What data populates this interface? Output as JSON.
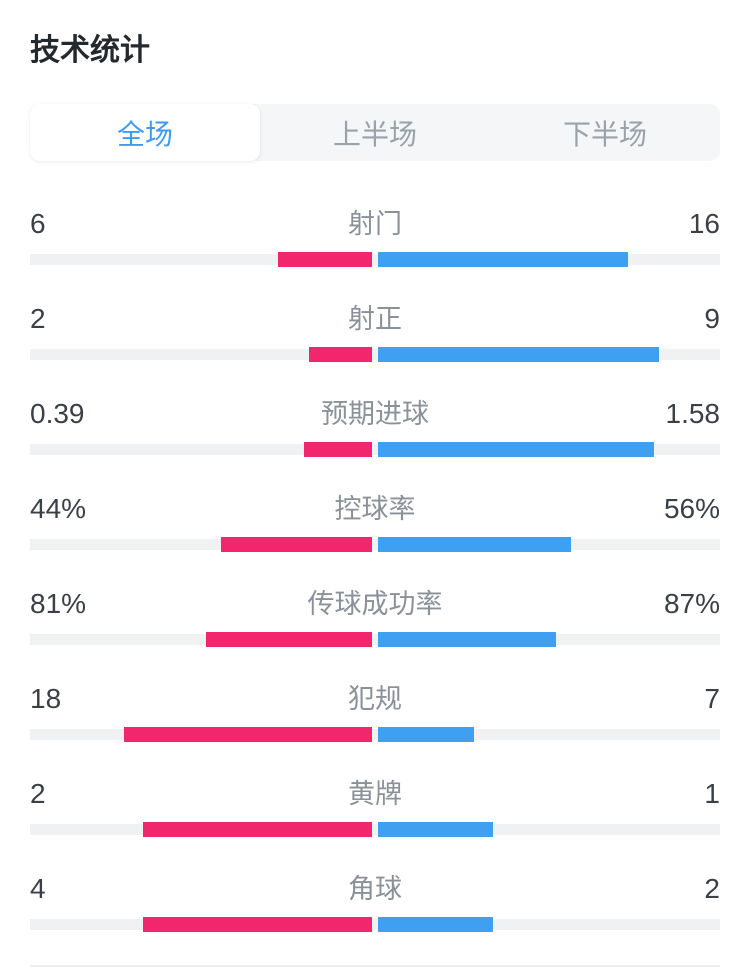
{
  "title": "技术统计",
  "tabs": [
    {
      "label": "全场",
      "active": true
    },
    {
      "label": "上半场",
      "active": false
    },
    {
      "label": "下半场",
      "active": false
    }
  ],
  "colors": {
    "home_bar": "#f2266d",
    "away_bar": "#3f9ff1",
    "track": "#f0f1f3",
    "tab_active_text": "#3e9cf0",
    "tab_inactive_text": "#9aa2ac",
    "tabbar_bg": "#f4f6f8",
    "value_text": "#3b4046",
    "label_text": "#8a9199",
    "title_text": "#24292e",
    "divider": "#efefef",
    "page_bg": "#ffffff"
  },
  "stats": {
    "rows": [
      {
        "key": "shots",
        "label": "射门",
        "home": "6",
        "away": "16",
        "home_value": 6,
        "away_value": 16
      },
      {
        "key": "shots-on-target",
        "label": "射正",
        "home": "2",
        "away": "9",
        "home_value": 2,
        "away_value": 9
      },
      {
        "key": "expected-goals",
        "label": "预期进球",
        "home": "0.39",
        "away": "1.58",
        "home_value": 0.39,
        "away_value": 1.58
      },
      {
        "key": "possession",
        "label": "控球率",
        "home": "44%",
        "away": "56%",
        "home_value": 44,
        "away_value": 56
      },
      {
        "key": "pass-success",
        "label": "传球成功率",
        "home": "81%",
        "away": "87%",
        "home_value": 81,
        "away_value": 87
      },
      {
        "key": "fouls",
        "label": "犯规",
        "home": "18",
        "away": "7",
        "home_value": 18,
        "away_value": 7
      },
      {
        "key": "yellow-cards",
        "label": "黄牌",
        "home": "2",
        "away": "1",
        "home_value": 2,
        "away_value": 1
      },
      {
        "key": "corners",
        "label": "角球",
        "home": "4",
        "away": "2",
        "home_value": 4,
        "away_value": 2
      }
    ]
  },
  "chart_data": {
    "type": "bar",
    "title": "技术统计",
    "categories": [
      "射门",
      "射正",
      "预期进球",
      "控球率",
      "传球成功率",
      "犯规",
      "黄牌",
      "角球"
    ],
    "series": [
      {
        "name": "home",
        "color": "#f2266d",
        "values": [
          6,
          2,
          0.39,
          44,
          81,
          18,
          2,
          4
        ]
      },
      {
        "name": "away",
        "color": "#3f9ff1",
        "values": [
          16,
          9,
          1.58,
          56,
          87,
          7,
          1,
          2
        ]
      }
    ],
    "value_labels": [
      [
        "6",
        "16"
      ],
      [
        "2",
        "9"
      ],
      [
        "0.39",
        "1.58"
      ],
      [
        "44%",
        "56%"
      ],
      [
        "81%",
        "87%"
      ],
      [
        "18",
        "7"
      ],
      [
        "2",
        "1"
      ],
      [
        "4",
        "2"
      ]
    ],
    "layout": "diverging-from-center, bar length = value / (home+away) share of half track"
  }
}
